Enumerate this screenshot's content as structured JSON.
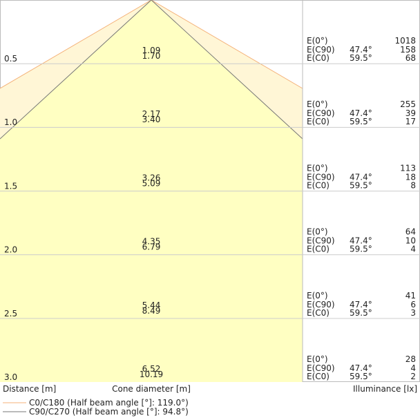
{
  "labels": {
    "e0": "E(0°)",
    "ec90": "E(C90)",
    "ec0": "E(C0)",
    "distance": "Distance [m]",
    "cone": "Cone diameter [m]",
    "illuminance": "Illuminance [lx]"
  },
  "legend": [
    "C0/C180 (Half beam angle [°]: 119.0°)",
    "C90/C270 (Half beam angle [°]: 94.8°)"
  ],
  "rows": [
    {
      "distance": "0.5",
      "cone_c90": "1.09",
      "cone_c0": "1.70",
      "e0": "1018",
      "c90_angle": "47.4°",
      "ec90": "158",
      "c0_angle": "59.5°",
      "ec0": "68"
    },
    {
      "distance": "1.0",
      "cone_c90": "2.17",
      "cone_c0": "3.40",
      "e0": "255",
      "c90_angle": "47.4°",
      "ec90": "39",
      "c0_angle": "59.5°",
      "ec0": "17"
    },
    {
      "distance": "1.5",
      "cone_c90": "3.26",
      "cone_c0": "5.09",
      "e0": "113",
      "c90_angle": "47.4°",
      "ec90": "18",
      "c0_angle": "59.5°",
      "ec0": "8"
    },
    {
      "distance": "2.0",
      "cone_c90": "4.35",
      "cone_c0": "6.79",
      "e0": "64",
      "c90_angle": "47.4°",
      "ec90": "10",
      "c0_angle": "59.5°",
      "ec0": "4"
    },
    {
      "distance": "2.5",
      "cone_c90": "5.44",
      "cone_c0": "8.49",
      "e0": "41",
      "c90_angle": "47.4°",
      "ec90": "6",
      "c0_angle": "59.5°",
      "ec0": "3"
    },
    {
      "distance": "3.0",
      "cone_c90": "6.52",
      "cone_c0": "10.19",
      "e0": "28",
      "c90_angle": "47.4°",
      "ec90": "4",
      "c0_angle": "59.5°",
      "ec0": "2"
    }
  ]
}
